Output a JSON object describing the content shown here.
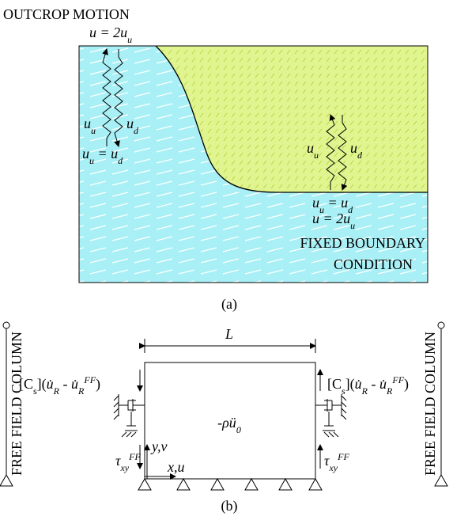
{
  "panel_a": {
    "outcrop_label": "OUTCROP MOTION",
    "top_eq": [
      {
        "t": "u = 2u",
        "i": true
      },
      {
        "t": "u",
        "sub": true,
        "i": true
      }
    ],
    "left_up": [
      {
        "t": "u",
        "i": true
      },
      {
        "t": "u",
        "sub": true,
        "i": true
      }
    ],
    "left_down": [
      {
        "t": "u",
        "i": true
      },
      {
        "t": "d",
        "sub": true,
        "i": true
      }
    ],
    "left_eq": [
      {
        "t": "u",
        "i": true
      },
      {
        "t": "u",
        "sub": true,
        "i": true
      },
      {
        "t": " = u",
        "i": true
      },
      {
        "t": "d",
        "sub": true,
        "i": true
      }
    ],
    "right_up": [
      {
        "t": "u",
        "i": true
      },
      {
        "t": "u",
        "sub": true,
        "i": true
      }
    ],
    "right_down": [
      {
        "t": "u",
        "i": true
      },
      {
        "t": "d",
        "sub": true,
        "i": true
      }
    ],
    "right_eq": [
      {
        "t": "u",
        "i": true
      },
      {
        "t": "u",
        "sub": true,
        "i": true
      },
      {
        "t": " = u",
        "i": true
      },
      {
        "t": "d",
        "sub": true,
        "i": true
      }
    ],
    "right_eq2": [
      {
        "t": "u = 2u",
        "i": true
      },
      {
        "t": "u",
        "sub": true,
        "i": true
      }
    ],
    "boundary_line1": "FIXED BOUNDARY",
    "boundary_line2": "CONDITION",
    "caption": "(a)"
  },
  "panel_b": {
    "length_label": [
      {
        "t": "L",
        "i": true
      }
    ],
    "left_damper_label": [
      {
        "t": "[C"
      },
      {
        "t": "s",
        "sub": true
      },
      {
        "t": "]("
      },
      {
        "t": "u̇",
        "i": true
      },
      {
        "t": "R",
        "sub": true,
        "i": true
      },
      {
        "t": " - "
      },
      {
        "t": "u̇",
        "i": true
      },
      {
        "t": "R",
        "sub": true,
        "i": true
      },
      {
        "t": "FF",
        "sup": true,
        "i": true
      },
      {
        "t": ")"
      }
    ],
    "right_damper_label": [
      {
        "t": "[C"
      },
      {
        "t": "s",
        "sub": true
      },
      {
        "t": "]("
      },
      {
        "t": "u̇",
        "i": true
      },
      {
        "t": "R",
        "sub": true,
        "i": true
      },
      {
        "t": " - "
      },
      {
        "t": "u̇",
        "i": true
      },
      {
        "t": "R",
        "sub": true,
        "i": true
      },
      {
        "t": "FF",
        "sup": true,
        "i": true
      },
      {
        "t": ")"
      }
    ],
    "inertia": [
      {
        "t": "-ρü",
        "i": true
      },
      {
        "t": "0",
        "sub": true,
        "i": true
      }
    ],
    "left_shear": [
      {
        "t": "τ",
        "i": true
      },
      {
        "t": "xy",
        "sub": true,
        "i": true
      },
      {
        "t": "FF",
        "sup": true,
        "i": true
      }
    ],
    "right_shear": [
      {
        "t": "τ",
        "i": true
      },
      {
        "t": "xy",
        "sub": true,
        "i": true
      },
      {
        "t": "FF",
        "sup": true,
        "i": true
      }
    ],
    "y_axis": [
      {
        "t": "y,v",
        "i": true
      }
    ],
    "x_axis": [
      {
        "t": "x,u",
        "i": true
      }
    ],
    "column_left": "FREE FIELD COLUMN",
    "column_right": "FREE FIELD COLUMN",
    "caption": "(b)"
  }
}
